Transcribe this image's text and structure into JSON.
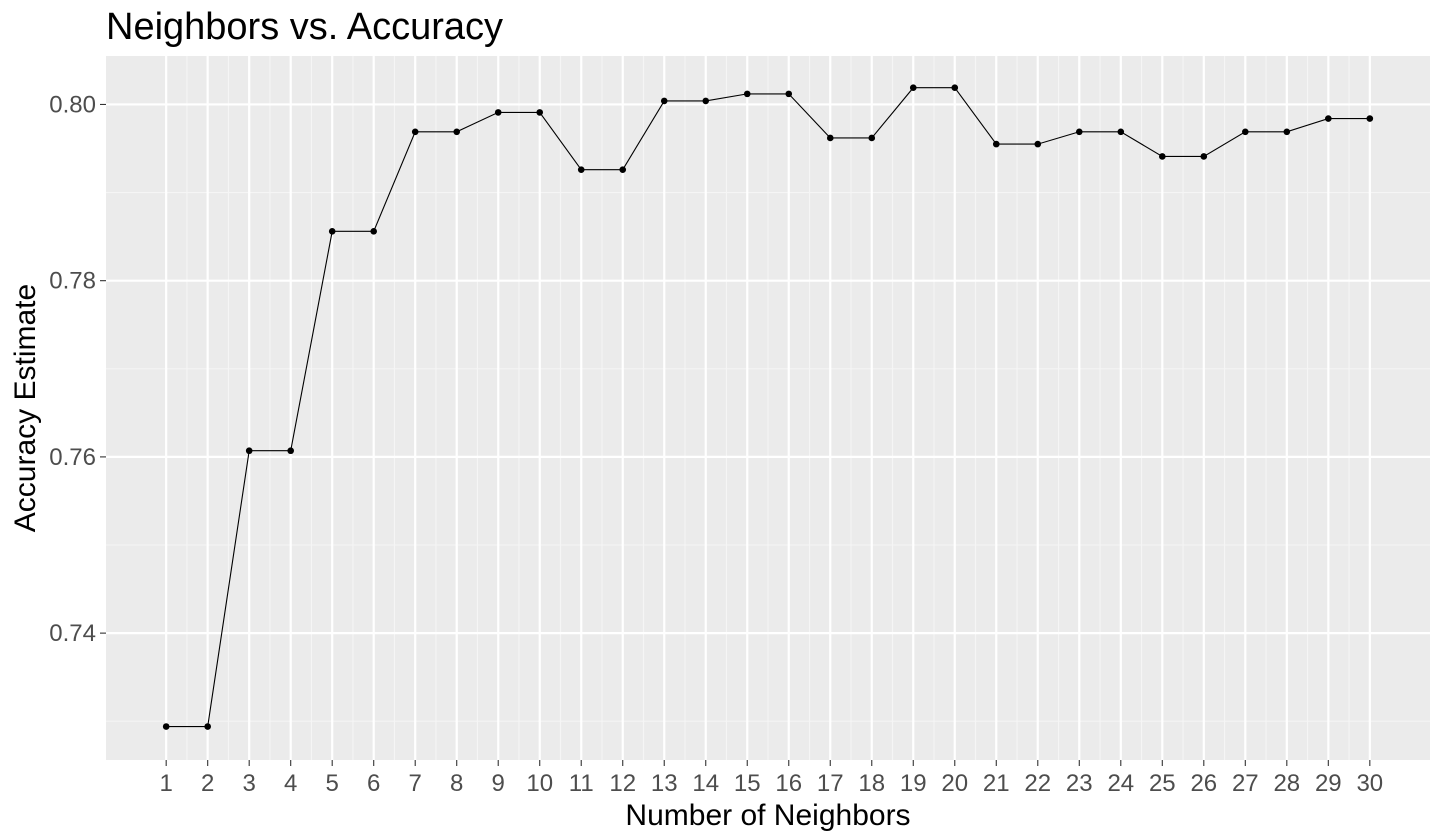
{
  "chart_data": {
    "type": "line",
    "title": "Neighbors vs. Accuracy",
    "xlabel": "Number of Neighbors",
    "ylabel": "Accuracy Estimate",
    "x": [
      1,
      2,
      3,
      4,
      5,
      6,
      7,
      8,
      9,
      10,
      11,
      12,
      13,
      14,
      15,
      16,
      17,
      18,
      19,
      20,
      21,
      22,
      23,
      24,
      25,
      26,
      27,
      28,
      29,
      30
    ],
    "xticks": [
      "1",
      "2",
      "3",
      "4",
      "5",
      "6",
      "7",
      "8",
      "9",
      "10",
      "11",
      "12",
      "13",
      "14",
      "15",
      "16",
      "17",
      "18",
      "19",
      "20",
      "21",
      "22",
      "23",
      "24",
      "25",
      "26",
      "27",
      "28",
      "29",
      "30"
    ],
    "y": [
      0.7294,
      0.7294,
      0.7607,
      0.7607,
      0.7856,
      0.7856,
      0.7969,
      0.7969,
      0.7991,
      0.7991,
      0.7926,
      0.7926,
      0.8004,
      0.8004,
      0.8012,
      0.8012,
      0.7962,
      0.7962,
      0.8019,
      0.8019,
      0.7955,
      0.7955,
      0.7969,
      0.7969,
      0.7941,
      0.7941,
      0.7969,
      0.7969,
      0.7984,
      0.7984
    ],
    "yticks": [
      "0.74",
      "0.76",
      "0.78",
      "0.80"
    ],
    "ytick_values": [
      0.74,
      0.76,
      0.78,
      0.8
    ],
    "xlim": [
      -0.45,
      31.45
    ],
    "ylim": [
      0.7256,
      0.8055
    ],
    "grid": true,
    "legend": "none",
    "colors": {
      "panel_background": "#ebebeb",
      "grid_major": "#ffffff",
      "grid_minor": "#f5f5f5",
      "line": "#000000",
      "point": "#000000",
      "tick_text": "#4d4d4d",
      "tick_mark": "#333333"
    }
  }
}
